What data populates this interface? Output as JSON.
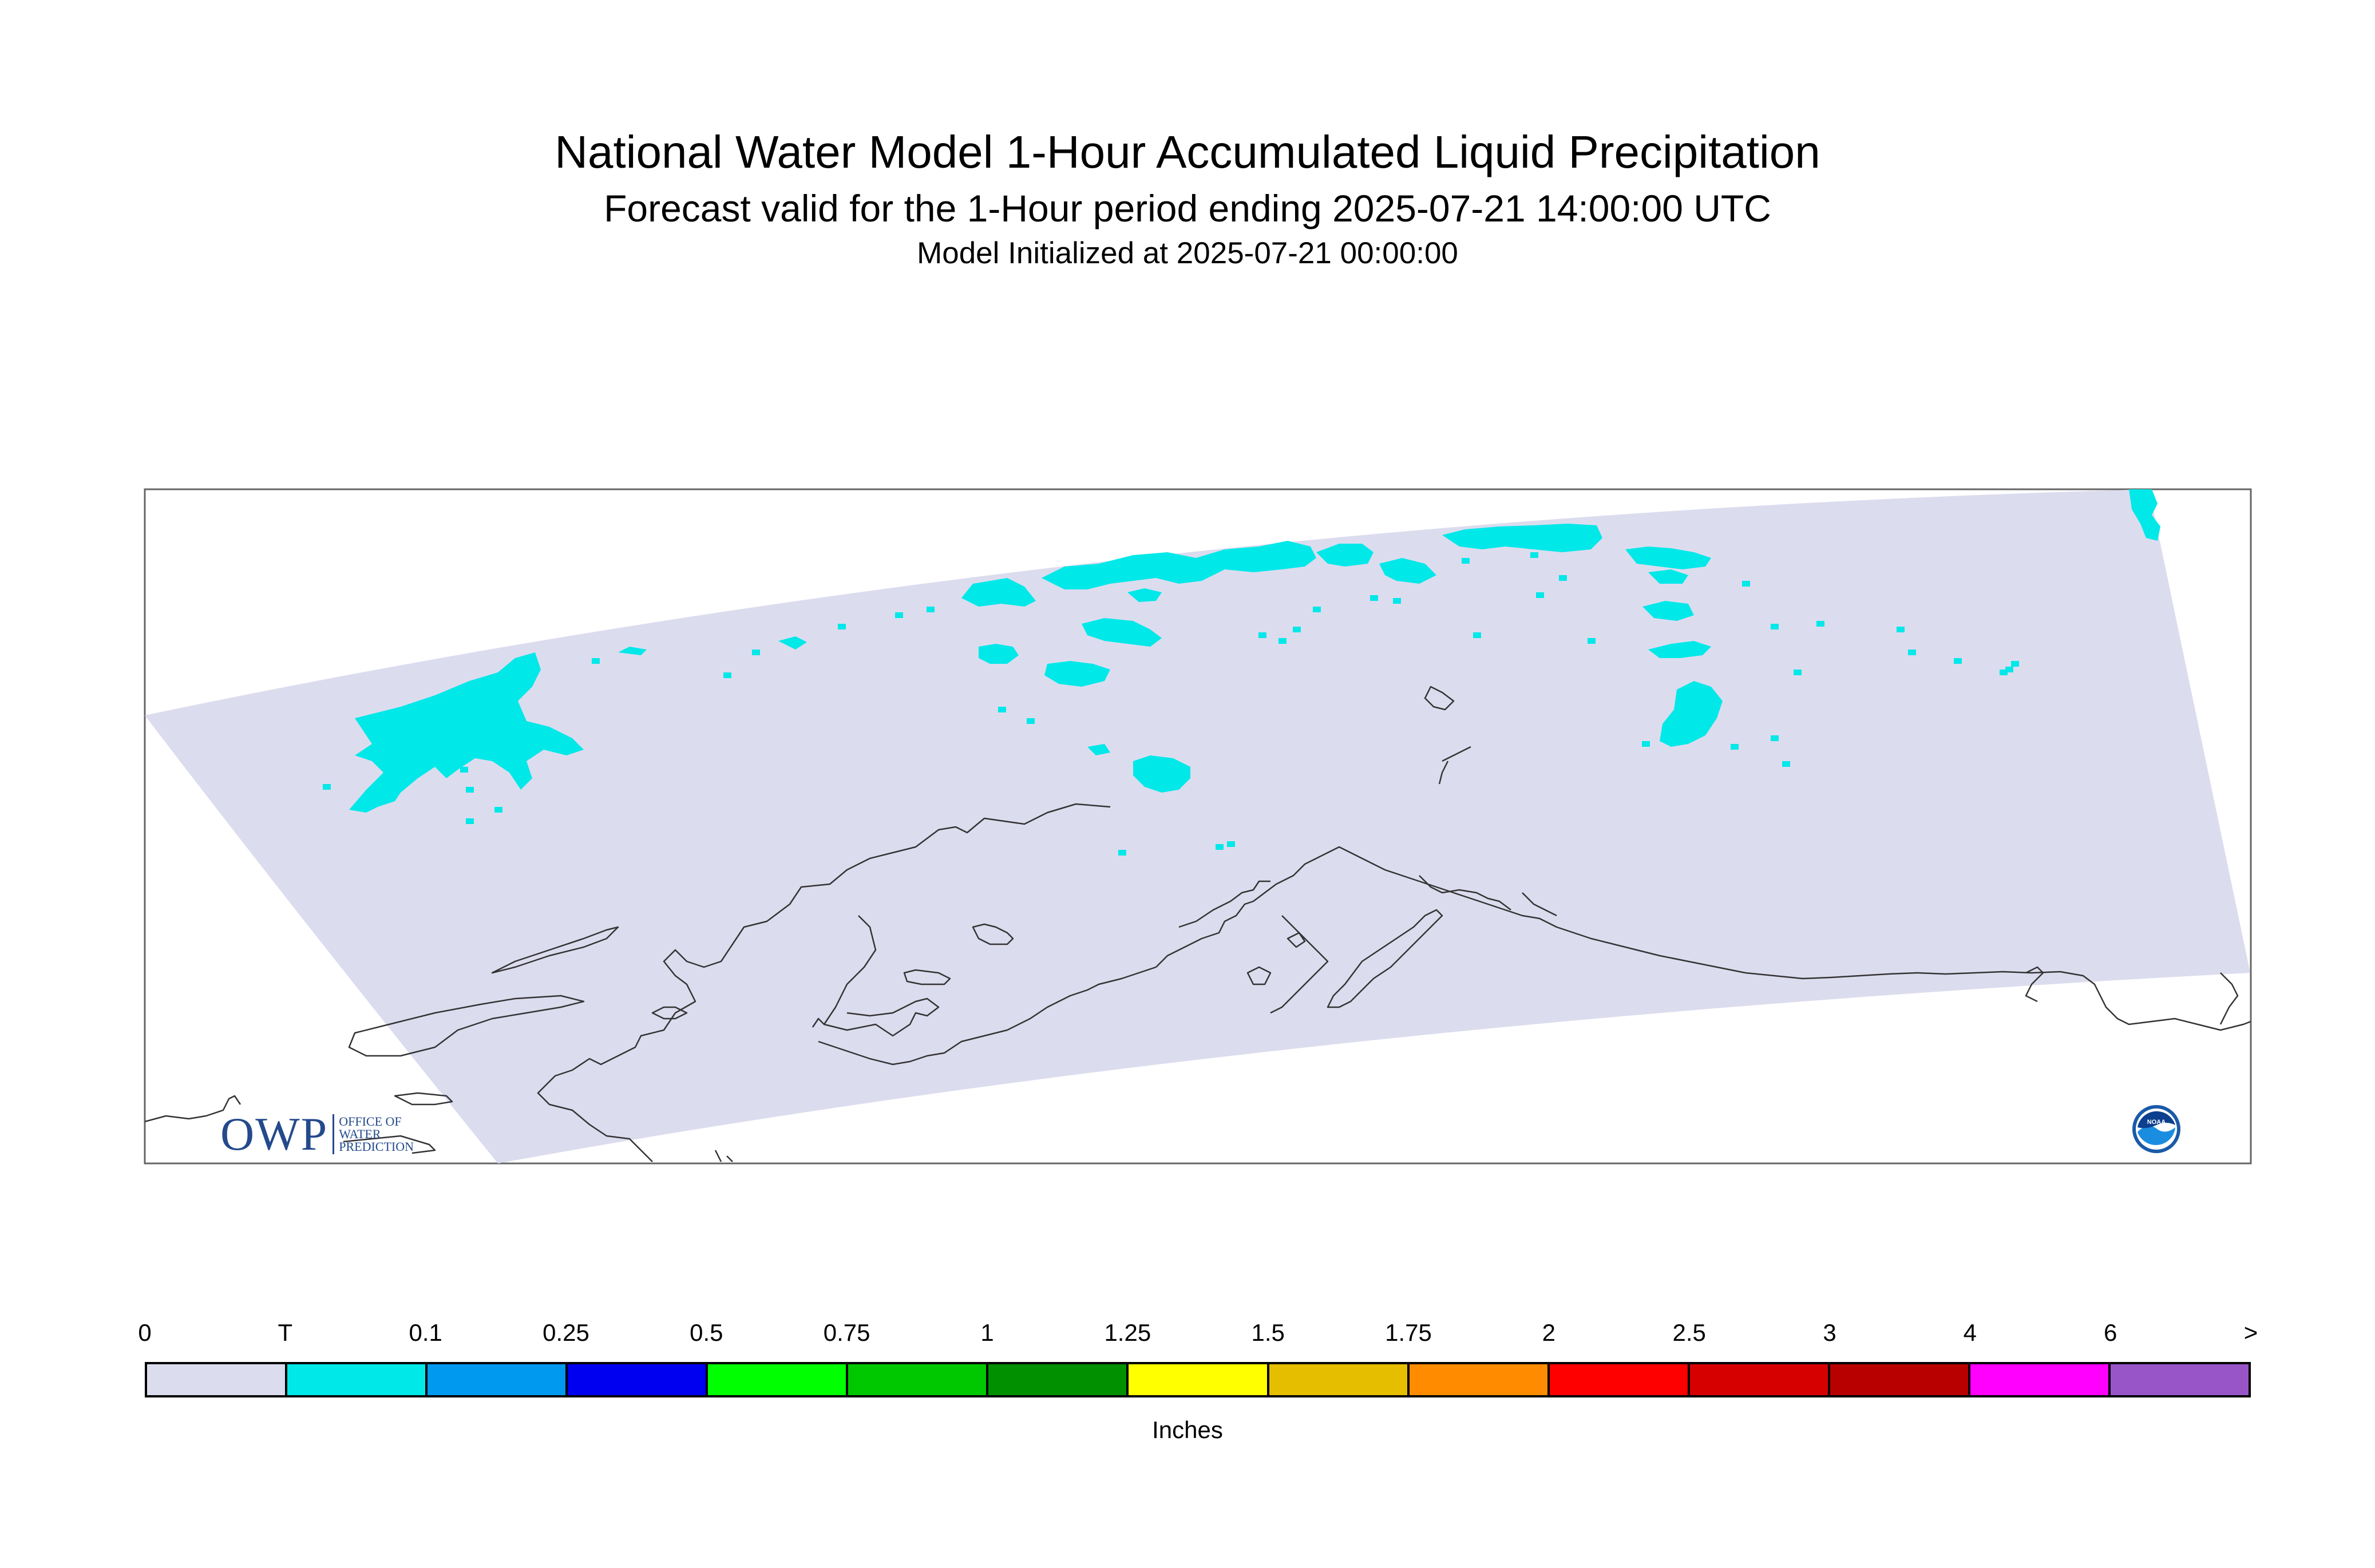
{
  "title": {
    "line1": "National Water Model 1-Hour Accumulated Liquid Precipitation",
    "line2": "Forecast valid for the 1-Hour period ending 2025-07-21 14:00:00 UTC",
    "line3": "Model Initialized at 2025-07-21 00:00:00"
  },
  "map": {
    "domain_fill_color": "#dcdcef",
    "precip_trace_color": "#00e8e8",
    "coastline_color": "#333333"
  },
  "legend": {
    "units": "Inches",
    "ticks": [
      "0",
      "T",
      "0.1",
      "0.25",
      "0.5",
      "0.75",
      "1",
      "1.25",
      "1.5",
      "1.75",
      "2",
      "2.5",
      "3",
      "4",
      "6",
      ">"
    ],
    "colors": [
      "#dcdcef",
      "#00e8e8",
      "#0099f0",
      "#0000f0",
      "#00ff00",
      "#00c800",
      "#009000",
      "#ffff00",
      "#e6be00",
      "#ff8c00",
      "#ff0000",
      "#d70000",
      "#b80000",
      "#ff00ff",
      "#9855c8"
    ]
  },
  "logos": {
    "owp": {
      "letters": "OWP",
      "sub1": "OFFICE OF",
      "sub2": "WATER",
      "sub3": "PREDICTION"
    },
    "noaa": {
      "text": "NOAA"
    }
  }
}
